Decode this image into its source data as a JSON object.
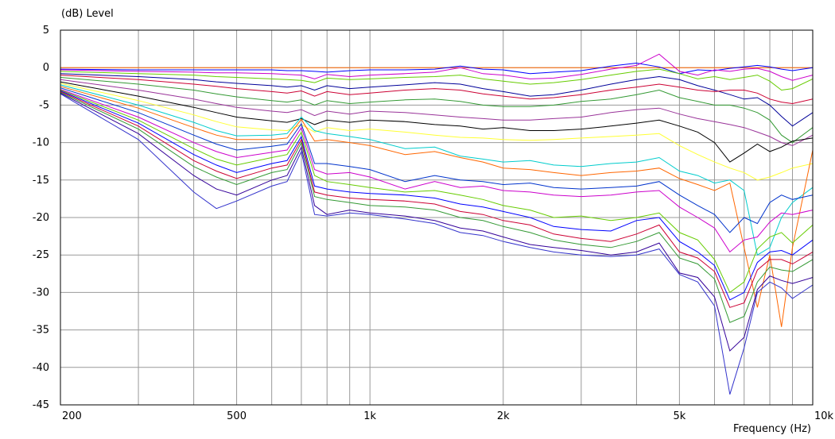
{
  "chart_data": {
    "type": "line",
    "title": "",
    "ylabel": "(dB)  Level",
    "xlabel": "Frequency  (Hz)",
    "xscale": "log",
    "xlim": [
      200,
      10000
    ],
    "ylim": [
      -45,
      5
    ],
    "grid": true,
    "legend": "none",
    "y_ticks": [
      "5",
      "0",
      "-5",
      "-10",
      "-15",
      "-20",
      "-25",
      "-30",
      "-35",
      "-40",
      "-45"
    ],
    "x_ticks": [
      {
        "value": 200,
        "label": "200"
      },
      {
        "value": 500,
        "label": "500"
      },
      {
        "value": 1000,
        "label": "1k"
      },
      {
        "value": 2000,
        "label": "2k"
      },
      {
        "value": 5000,
        "label": "5k"
      },
      {
        "value": 10000,
        "label": "10k"
      }
    ],
    "x_grid": [
      300,
      400,
      500,
      600,
      700,
      800,
      900,
      1000,
      2000,
      3000,
      4000,
      5000,
      6000,
      7000,
      8000,
      9000,
      10000
    ],
    "x": [
      200,
      300,
      400,
      450,
      500,
      600,
      650,
      700,
      750,
      800,
      900,
      1000,
      1200,
      1400,
      1600,
      1800,
      2000,
      2300,
      2600,
      3000,
      3500,
      4000,
      4500,
      5000,
      5500,
      6000,
      6500,
      7000,
      7500,
      8000,
      8500,
      9000,
      10000
    ],
    "series": [
      {
        "color": "#ff6600",
        "values": [
          0,
          0,
          0,
          0,
          0,
          0,
          0,
          0,
          0,
          0,
          0,
          0,
          0,
          0,
          0,
          0,
          0,
          0,
          0,
          0,
          0,
          0,
          0,
          0,
          0,
          0,
          0,
          0,
          0,
          0,
          0,
          0,
          0
        ]
      },
      {
        "color": "#0000ff",
        "values": [
          -0.2,
          -0.3,
          -0.3,
          -0.3,
          -0.3,
          -0.3,
          -0.4,
          -0.4,
          -0.5,
          -0.6,
          -0.4,
          -0.3,
          -0.3,
          -0.2,
          0.2,
          -0.2,
          -0.3,
          -0.8,
          -0.6,
          -0.4,
          0.2,
          0.6,
          0.1,
          -0.8,
          -0.3,
          -0.4,
          -0.1,
          0.1,
          0.3,
          0.1,
          -0.2,
          -0.4,
          0
        ]
      },
      {
        "color": "#cc00cc",
        "values": [
          -0.3,
          -0.5,
          -0.6,
          -0.7,
          -0.7,
          -0.8,
          -0.9,
          -1.0,
          -1.5,
          -0.9,
          -1.2,
          -1.0,
          -0.8,
          -0.6,
          0,
          -0.8,
          -1.0,
          -1.5,
          -1.4,
          -0.9,
          -0.2,
          0.3,
          1.8,
          -0.5,
          -1.0,
          -0.3,
          -0.5,
          -0.2,
          -0.1,
          -0.5,
          -1.2,
          -1.7,
          -1.0
        ]
      },
      {
        "color": "#66cc00",
        "values": [
          -0.5,
          -0.8,
          -1.0,
          -1.2,
          -1.3,
          -1.5,
          -1.6,
          -1.7,
          -2.0,
          -1.4,
          -1.6,
          -1.5,
          -1.3,
          -1.2,
          -1.0,
          -1.5,
          -1.8,
          -2.2,
          -2.0,
          -1.6,
          -1.0,
          -0.5,
          -0.2,
          -0.8,
          -1.5,
          -1.2,
          -1.6,
          -1.3,
          -1.0,
          -1.8,
          -3.0,
          -2.8,
          -1.5
        ]
      },
      {
        "color": "#000099",
        "values": [
          -0.8,
          -1.2,
          -1.6,
          -1.9,
          -2.1,
          -2.4,
          -2.6,
          -2.4,
          -3.0,
          -2.4,
          -2.8,
          -2.6,
          -2.3,
          -2.0,
          -2.2,
          -2.8,
          -3.2,
          -3.8,
          -3.6,
          -3.0,
          -2.2,
          -1.6,
          -1.2,
          -1.6,
          -2.4,
          -3.0,
          -3.6,
          -4.2,
          -4.0,
          -5.0,
          -6.5,
          -7.8,
          -6.0
        ]
      },
      {
        "color": "#cc0033",
        "values": [
          -1.0,
          -1.6,
          -2.2,
          -2.5,
          -2.8,
          -3.2,
          -3.4,
          -3.1,
          -3.8,
          -3.2,
          -3.6,
          -3.4,
          -3.0,
          -2.8,
          -3.0,
          -3.5,
          -3.8,
          -4.2,
          -4.0,
          -3.6,
          -3.0,
          -2.6,
          -2.2,
          -2.6,
          -3.0,
          -3.2,
          -3.0,
          -3.0,
          -3.4,
          -4.2,
          -4.6,
          -4.8,
          -4.2
        ]
      },
      {
        "color": "#339933",
        "values": [
          -1.3,
          -2.2,
          -3.0,
          -3.5,
          -3.9,
          -4.4,
          -4.6,
          -4.3,
          -5.0,
          -4.4,
          -4.8,
          -4.6,
          -4.3,
          -4.2,
          -4.5,
          -5.0,
          -5.2,
          -5.2,
          -5.0,
          -4.5,
          -4.2,
          -3.6,
          -3.0,
          -4.0,
          -4.5,
          -5.0,
          -5.0,
          -5.4,
          -6.0,
          -7.0,
          -9.0,
          -10.0,
          -8.0
        ]
      },
      {
        "color": "#993399",
        "values": [
          -1.6,
          -3.0,
          -4.2,
          -4.8,
          -5.3,
          -5.8,
          -6.0,
          -5.6,
          -6.4,
          -5.8,
          -6.2,
          -5.8,
          -6.0,
          -6.3,
          -6.6,
          -6.8,
          -7.0,
          -7.0,
          -6.8,
          -6.6,
          -6.0,
          -5.6,
          -5.4,
          -6.2,
          -6.8,
          -7.2,
          -7.6,
          -8.0,
          -8.6,
          -9.2,
          -10.0,
          -10.4,
          -9.0
        ]
      },
      {
        "color": "#000000",
        "values": [
          -1.9,
          -3.8,
          -5.3,
          -6.0,
          -6.6,
          -7.1,
          -7.3,
          -6.8,
          -7.6,
          -7.0,
          -7.3,
          -7.0,
          -7.2,
          -7.6,
          -7.8,
          -8.2,
          -8.0,
          -8.4,
          -8.4,
          -8.2,
          -7.8,
          -7.4,
          -7.0,
          -7.8,
          -8.6,
          -10.0,
          -12.6,
          -11.4,
          -10.2,
          -11.2,
          -10.6,
          -9.8,
          -9.4
        ]
      },
      {
        "color": "#ffff33",
        "values": [
          -2.1,
          -4.4,
          -6.3,
          -7.2,
          -7.9,
          -8.3,
          -8.4,
          -7.6,
          -8.6,
          -8.0,
          -8.4,
          -8.2,
          -8.6,
          -9.0,
          -9.3,
          -9.4,
          -9.6,
          -9.7,
          -9.6,
          -9.4,
          -9.2,
          -9.0,
          -8.8,
          -10.4,
          -11.6,
          -12.6,
          -13.4,
          -14.0,
          -15.0,
          -14.6,
          -14.0,
          -13.4,
          -12.8
        ]
      },
      {
        "color": "#00cccc",
        "values": [
          -2.3,
          -5.0,
          -7.3,
          -8.4,
          -9.1,
          -9.0,
          -8.8,
          -6.6,
          -8.4,
          -8.8,
          -9.2,
          -9.6,
          -10.8,
          -10.6,
          -11.8,
          -12.2,
          -12.6,
          -12.4,
          -13.0,
          -13.2,
          -12.8,
          -12.6,
          -12.0,
          -13.8,
          -14.4,
          -15.4,
          -15.0,
          -16.4,
          -25.0,
          -24.0,
          -20.0,
          -18.0,
          -16.0
        ]
      },
      {
        "color": "#ff6600",
        "values": [
          -2.5,
          -5.4,
          -8.0,
          -9.0,
          -9.6,
          -9.6,
          -9.4,
          -6.9,
          -9.8,
          -9.6,
          -10.0,
          -10.4,
          -11.6,
          -11.2,
          -12.0,
          -12.6,
          -13.4,
          -13.6,
          -14.0,
          -14.4,
          -14.0,
          -13.8,
          -13.4,
          -14.8,
          -15.6,
          -16.4,
          -15.4,
          -24.0,
          -32.0,
          -25.0,
          -34.6,
          -24.0,
          -11.0
        ]
      },
      {
        "color": "#0033cc",
        "values": [
          -2.7,
          -6.0,
          -9.0,
          -10.2,
          -11.0,
          -10.5,
          -10.2,
          -7.5,
          -12.8,
          -12.8,
          -13.2,
          -13.6,
          -15.2,
          -14.4,
          -15.0,
          -15.2,
          -15.6,
          -15.4,
          -16.0,
          -16.2,
          -16.0,
          -15.8,
          -15.2,
          -17.0,
          -18.4,
          -19.6,
          -22.0,
          -20.0,
          -20.8,
          -18.0,
          -17.0,
          -17.6,
          -17.0
        ]
      },
      {
        "color": "#cc00cc",
        "values": [
          -2.9,
          -6.6,
          -10.0,
          -11.2,
          -12.0,
          -11.3,
          -11.0,
          -8.0,
          -13.6,
          -14.2,
          -14.0,
          -14.6,
          -16.2,
          -15.2,
          -16.0,
          -15.8,
          -16.4,
          -16.6,
          -17.0,
          -17.2,
          -17.0,
          -16.6,
          -16.4,
          -18.6,
          -20.0,
          -21.4,
          -24.6,
          -23.0,
          -22.6,
          -20.6,
          -19.4,
          -19.6,
          -19.0
        ]
      },
      {
        "color": "#66cc00",
        "values": [
          -3.0,
          -7.0,
          -10.8,
          -12.2,
          -13.0,
          -12.0,
          -11.6,
          -8.6,
          -14.4,
          -15.2,
          -15.6,
          -16.0,
          -16.6,
          -16.4,
          -17.0,
          -17.6,
          -18.4,
          -19.0,
          -20.0,
          -19.8,
          -20.4,
          -20.0,
          -19.4,
          -22.0,
          -23.0,
          -25.6,
          -30.0,
          -28.6,
          -24.2,
          -22.6,
          -22.0,
          -23.4,
          -21.0
        ]
      },
      {
        "color": "#0000ff",
        "values": [
          -3.1,
          -7.4,
          -11.6,
          -13.0,
          -14.0,
          -12.8,
          -12.4,
          -9.2,
          -15.8,
          -16.2,
          -16.6,
          -16.8,
          -17.0,
          -17.4,
          -18.2,
          -18.6,
          -19.2,
          -20.0,
          -21.2,
          -21.6,
          -21.8,
          -20.4,
          -20.0,
          -23.2,
          -24.6,
          -26.4,
          -31.0,
          -30.0,
          -26.0,
          -24.6,
          -24.4,
          -25.0,
          -23.0
        ]
      },
      {
        "color": "#cc0033",
        "values": [
          -3.2,
          -7.8,
          -12.4,
          -13.8,
          -14.8,
          -13.4,
          -13.0,
          -9.6,
          -16.6,
          -17.0,
          -17.4,
          -17.6,
          -17.8,
          -18.2,
          -19.2,
          -19.6,
          -20.4,
          -21.0,
          -22.2,
          -22.8,
          -23.2,
          -22.2,
          -21.0,
          -24.6,
          -25.4,
          -27.2,
          -32.0,
          -31.4,
          -27.0,
          -25.6,
          -25.6,
          -26.2,
          -24.6
        ]
      },
      {
        "color": "#339933",
        "values": [
          -3.3,
          -8.2,
          -13.2,
          -14.6,
          -15.6,
          -14.0,
          -13.6,
          -10.0,
          -17.2,
          -17.6,
          -18.0,
          -18.4,
          -18.6,
          -19.0,
          -20.0,
          -20.4,
          -21.2,
          -22.0,
          -23.0,
          -23.6,
          -24.0,
          -23.2,
          -22.0,
          -25.4,
          -26.2,
          -28.2,
          -34.0,
          -33.2,
          -28.6,
          -26.6,
          -27.0,
          -27.2,
          -25.6
        ]
      },
      {
        "color": "#330099",
        "values": [
          -3.4,
          -8.8,
          -14.4,
          -16.2,
          -17.0,
          -15.0,
          -14.4,
          -10.6,
          -18.4,
          -19.6,
          -19.0,
          -19.4,
          -19.8,
          -20.4,
          -21.4,
          -21.8,
          -22.6,
          -23.6,
          -24.0,
          -24.4,
          -25.0,
          -24.6,
          -23.4,
          -27.4,
          -28.0,
          -30.6,
          -37.8,
          -36.0,
          -29.6,
          -27.8,
          -28.4,
          -28.8,
          -28.0
        ]
      },
      {
        "color": "#3333cc",
        "values": [
          -3.5,
          -9.6,
          -16.6,
          -18.8,
          -17.8,
          -15.8,
          -15.2,
          -11.2,
          -19.6,
          -19.8,
          -19.4,
          -19.6,
          -20.2,
          -20.8,
          -22.0,
          -22.4,
          -23.2,
          -24.0,
          -24.6,
          -25.0,
          -25.2,
          -25.0,
          -24.2,
          -27.6,
          -28.6,
          -31.8,
          -43.6,
          -37.4,
          -30.0,
          -28.6,
          -29.4,
          -30.8,
          -29.0
        ]
      }
    ]
  }
}
